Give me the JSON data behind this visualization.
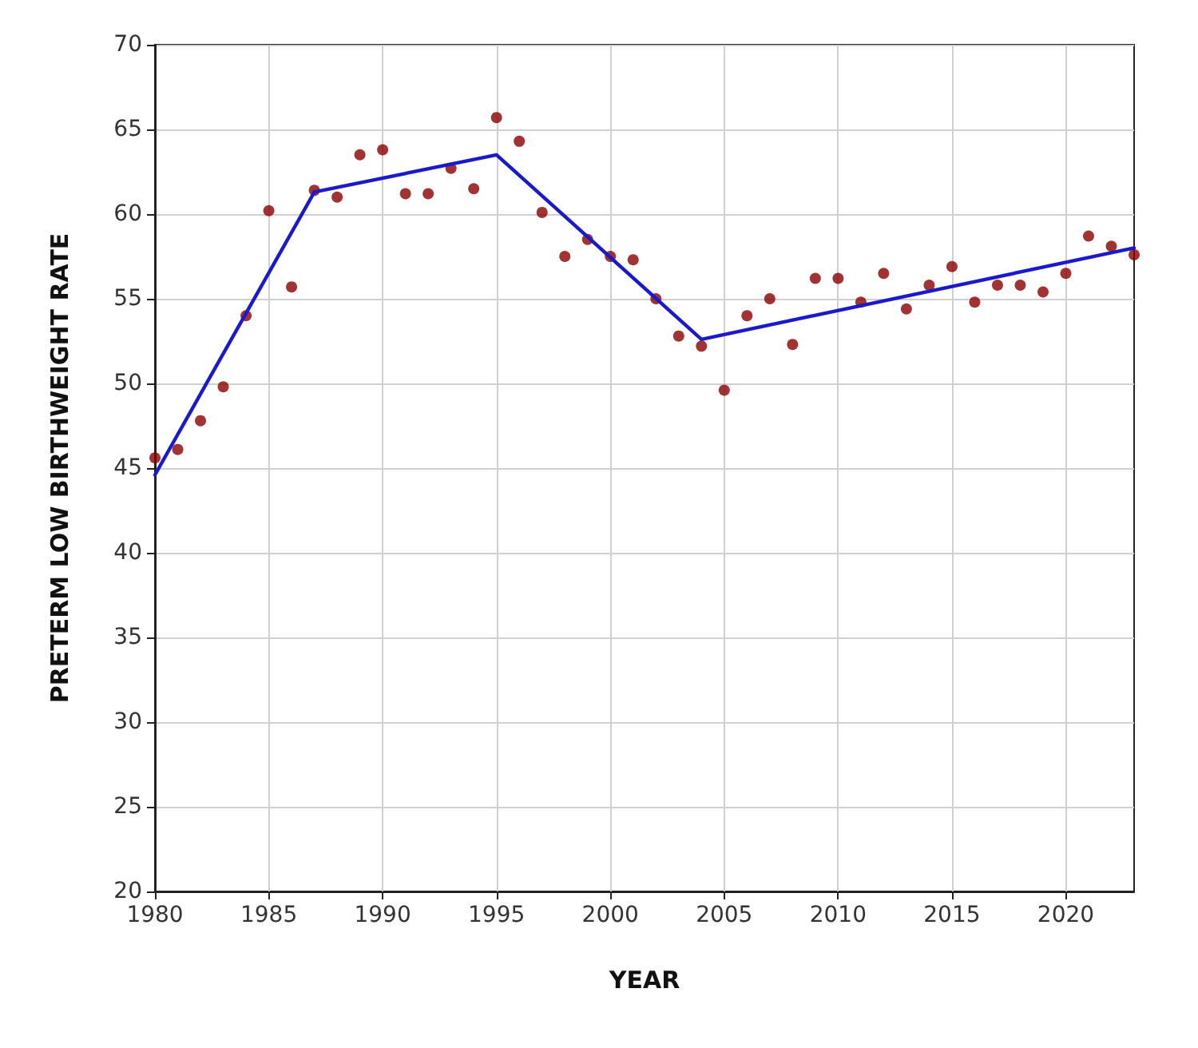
{
  "chart_data": {
    "type": "scatter",
    "xlabel": "YEAR",
    "ylabel": "PRETERM LOW BIRTHWEIGHT RATE",
    "xlim": [
      1980,
      2023
    ],
    "xticks": [
      1980,
      1985,
      1990,
      1995,
      2000,
      2005,
      2010,
      2015,
      2020
    ],
    "ylim": [
      20,
      70
    ],
    "yticks": [
      20,
      25,
      30,
      35,
      40,
      45,
      50,
      55,
      60,
      65,
      70
    ],
    "grid": true,
    "series": [
      {
        "color": "#8b0000",
        "marker": "circle",
        "x": [
          1980,
          1981,
          1982,
          1983,
          1984,
          1985,
          1986,
          1987,
          1988,
          1989,
          1990,
          1991,
          1992,
          1993,
          1994,
          1995,
          1996,
          1997,
          1998,
          1999,
          2000,
          2001,
          2002,
          2003,
          2004,
          2005,
          2006,
          2007,
          2008,
          2009,
          2010,
          2011,
          2012,
          2013,
          2014,
          2015,
          2016,
          2017,
          2018,
          2019,
          2020,
          2021,
          2022,
          2023
        ],
        "values": [
          45.6,
          46.1,
          47.8,
          49.8,
          54.0,
          60.2,
          55.7,
          61.4,
          61.0,
          63.5,
          63.8,
          61.2,
          61.2,
          62.7,
          61.5,
          65.7,
          64.3,
          60.1,
          57.5,
          58.5,
          57.5,
          57.3,
          55.0,
          52.8,
          52.2,
          49.6,
          54.0,
          55.0,
          52.3,
          56.2,
          56.2,
          54.8,
          56.5,
          54.4,
          55.8,
          56.9,
          54.8,
          55.8,
          55.8,
          55.4,
          56.5,
          58.7,
          58.1,
          57.6
        ]
      },
      {
        "type": "line",
        "color": "#1a1acc",
        "marker": "none",
        "line_style": "solid",
        "x": [
          1980,
          1987,
          1995,
          2004,
          2023
        ],
        "values": [
          44.6,
          61.3,
          63.5,
          52.6,
          58.0
        ]
      }
    ]
  }
}
